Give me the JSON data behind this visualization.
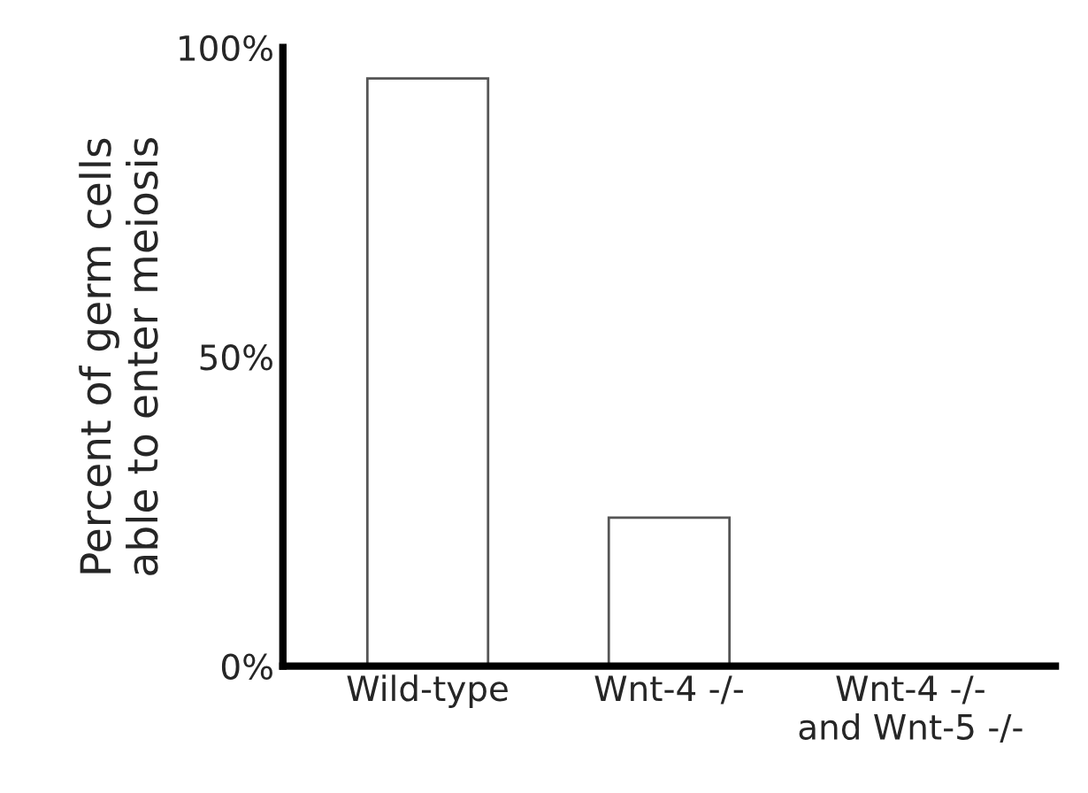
{
  "chart_data": {
    "type": "bar",
    "ylabel": "Percent of germ cells\nable to enter meiosis",
    "categories": [
      "Wild-type",
      "Wnt-4 -/-",
      "Wnt-4 -/-\nand Wnt-5 -/-"
    ],
    "values": [
      95,
      24,
      0
    ],
    "color": "#ffffff",
    "ylim": [
      0,
      100
    ],
    "yticks": [
      {
        "value": 0,
        "label": "0%"
      },
      {
        "value": 50,
        "label": "50%"
      },
      {
        "value": 100,
        "label": "100%"
      }
    ],
    "grid": false,
    "legend": false
  }
}
